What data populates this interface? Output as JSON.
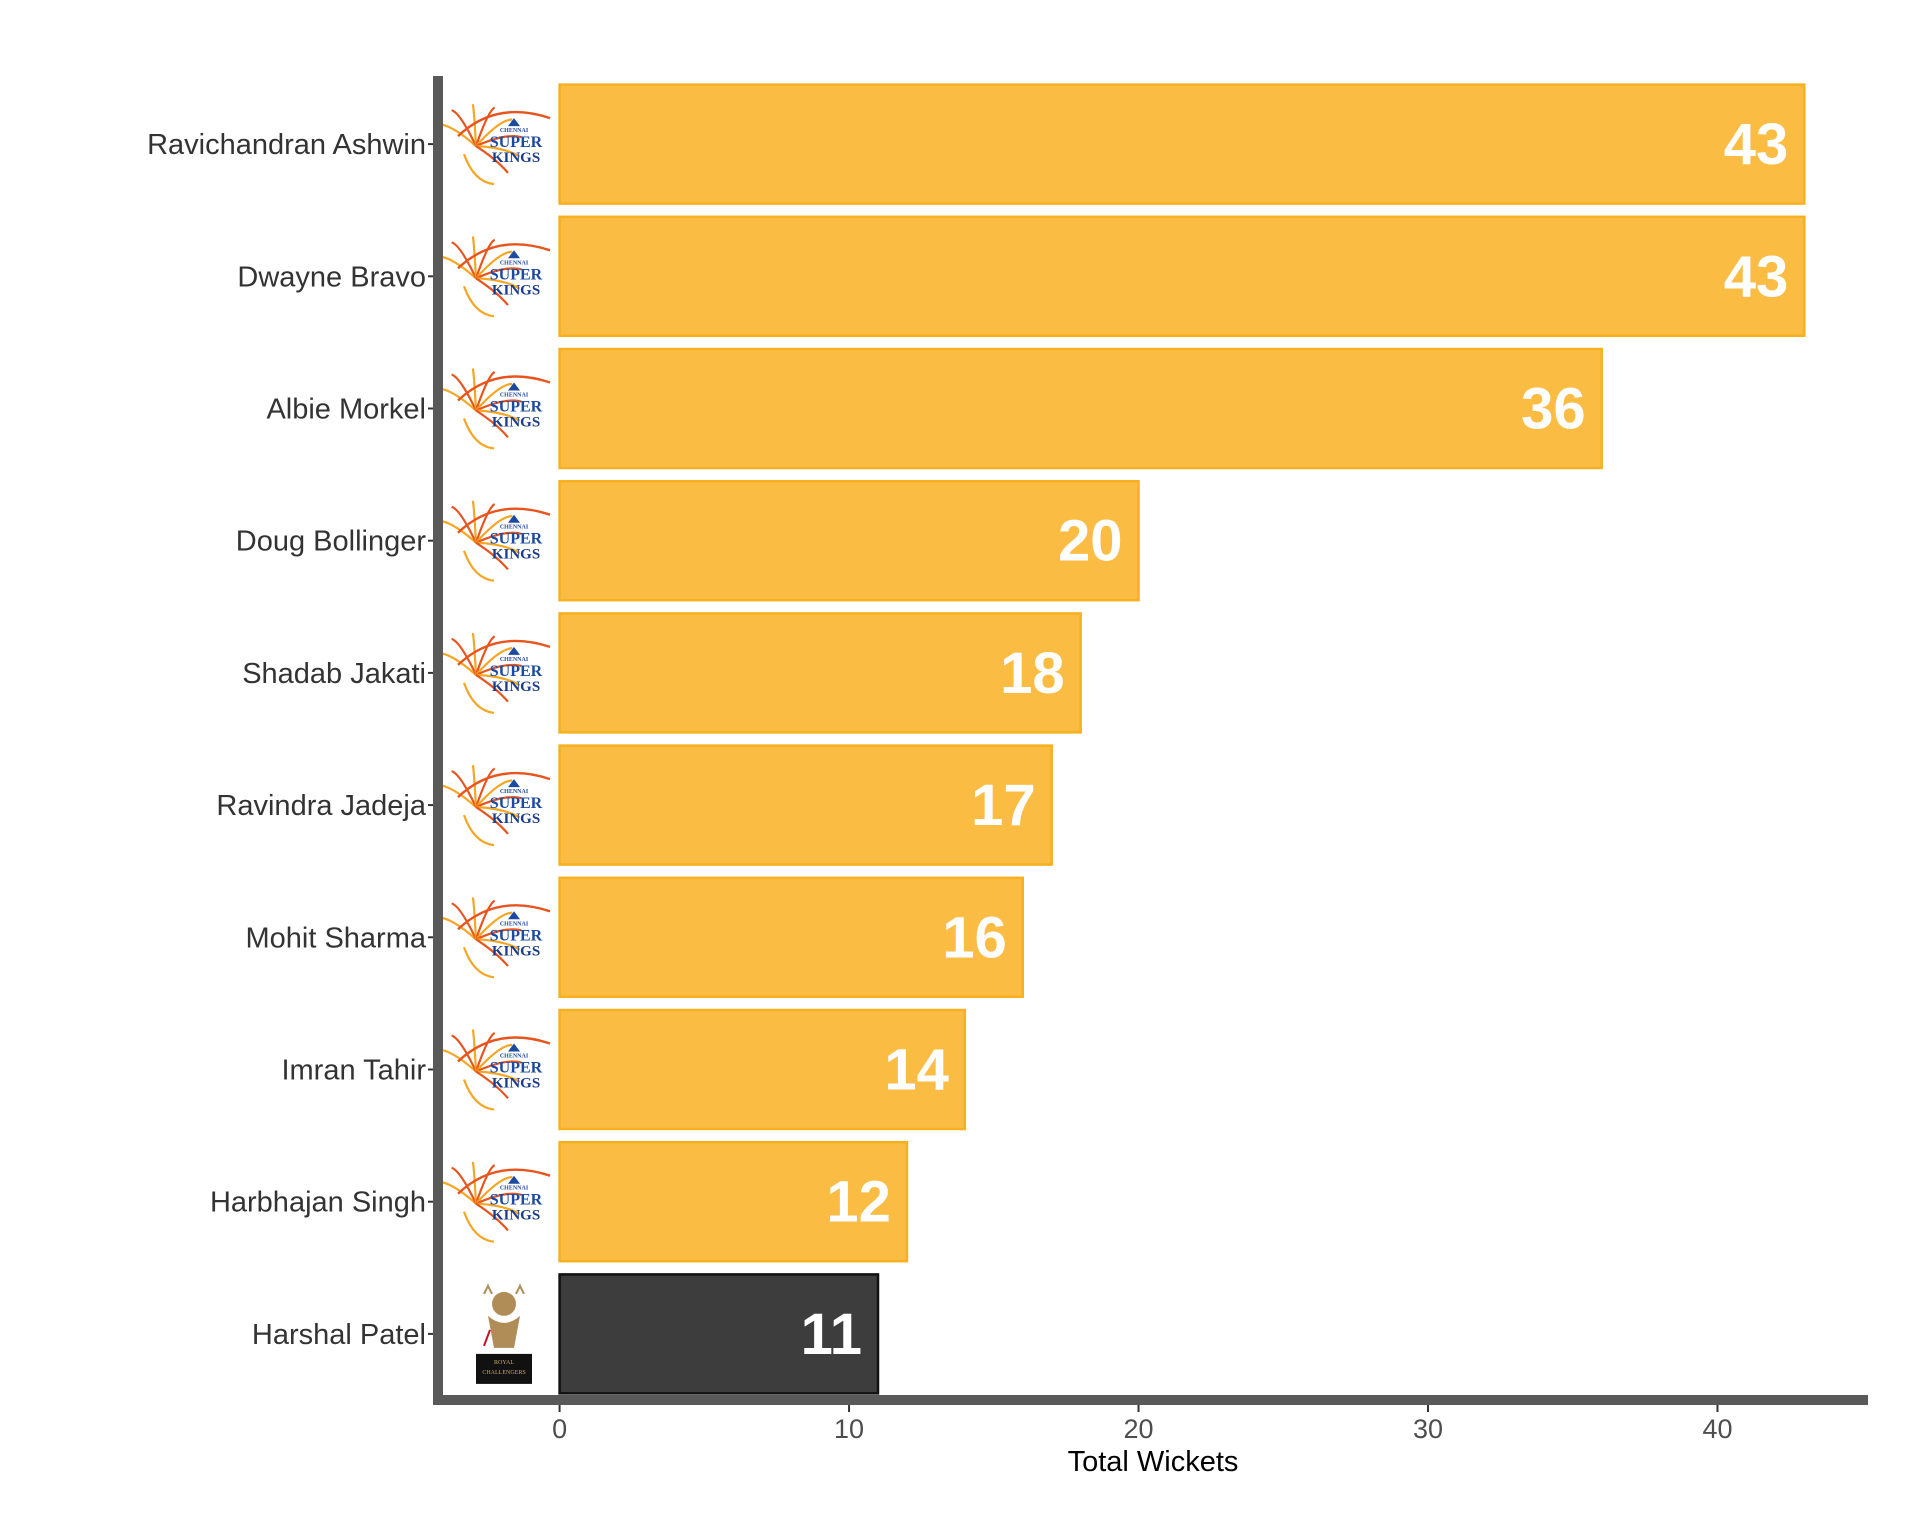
{
  "chart_data": {
    "type": "bar",
    "orientation": "horizontal",
    "title": "",
    "xlabel": "Total Wickets",
    "ylabel": "",
    "xlim": [
      -4.2,
      45.2
    ],
    "x_ticks": [
      "0",
      "10",
      "20",
      "30",
      "40"
    ],
    "x_tick_values": [
      0,
      10,
      20,
      30,
      40
    ],
    "grid": false,
    "legend": "none",
    "categories": [
      "Ravichandran Ashwin",
      "Dwayne Bravo",
      "Albie Morkel",
      "Doug Bollinger",
      "Shadab Jakati",
      "Ravindra Jadeja",
      "Mohit Sharma",
      "Imran Tahir",
      "Harbhajan Singh",
      "Harshal Patel"
    ],
    "values": [
      43,
      43,
      36,
      20,
      18,
      17,
      16,
      14,
      12,
      11
    ],
    "value_labels": [
      "43",
      "43",
      "36",
      "20",
      "18",
      "17",
      "16",
      "14",
      "12",
      "11"
    ],
    "teams": [
      "Chennai Super Kings",
      "Chennai Super Kings",
      "Chennai Super Kings",
      "Chennai Super Kings",
      "Chennai Super Kings",
      "Chennai Super Kings",
      "Chennai Super Kings",
      "Chennai Super Kings",
      "Chennai Super Kings",
      "Royal Challengers Bangalore"
    ],
    "team_logo_icons": [
      "csk-logo-icon",
      "csk-logo-icon",
      "csk-logo-icon",
      "csk-logo-icon",
      "csk-logo-icon",
      "csk-logo-icon",
      "csk-logo-icon",
      "csk-logo-icon",
      "csk-logo-icon",
      "rcb-logo-icon"
    ],
    "team_logo_text": {
      "csk": [
        "CHENNAI",
        "SUPER",
        "KINGS"
      ],
      "rcb": [
        "ROYAL",
        "CHALLENGERS"
      ]
    },
    "colors": {
      "csk_fill": "#FBBC44",
      "csk_stroke": "#F6B020",
      "rcb_fill": "#3D3D3D",
      "rcb_stroke": "#111111",
      "axis": "#595959",
      "value_text": "#FFFFFF"
    }
  }
}
